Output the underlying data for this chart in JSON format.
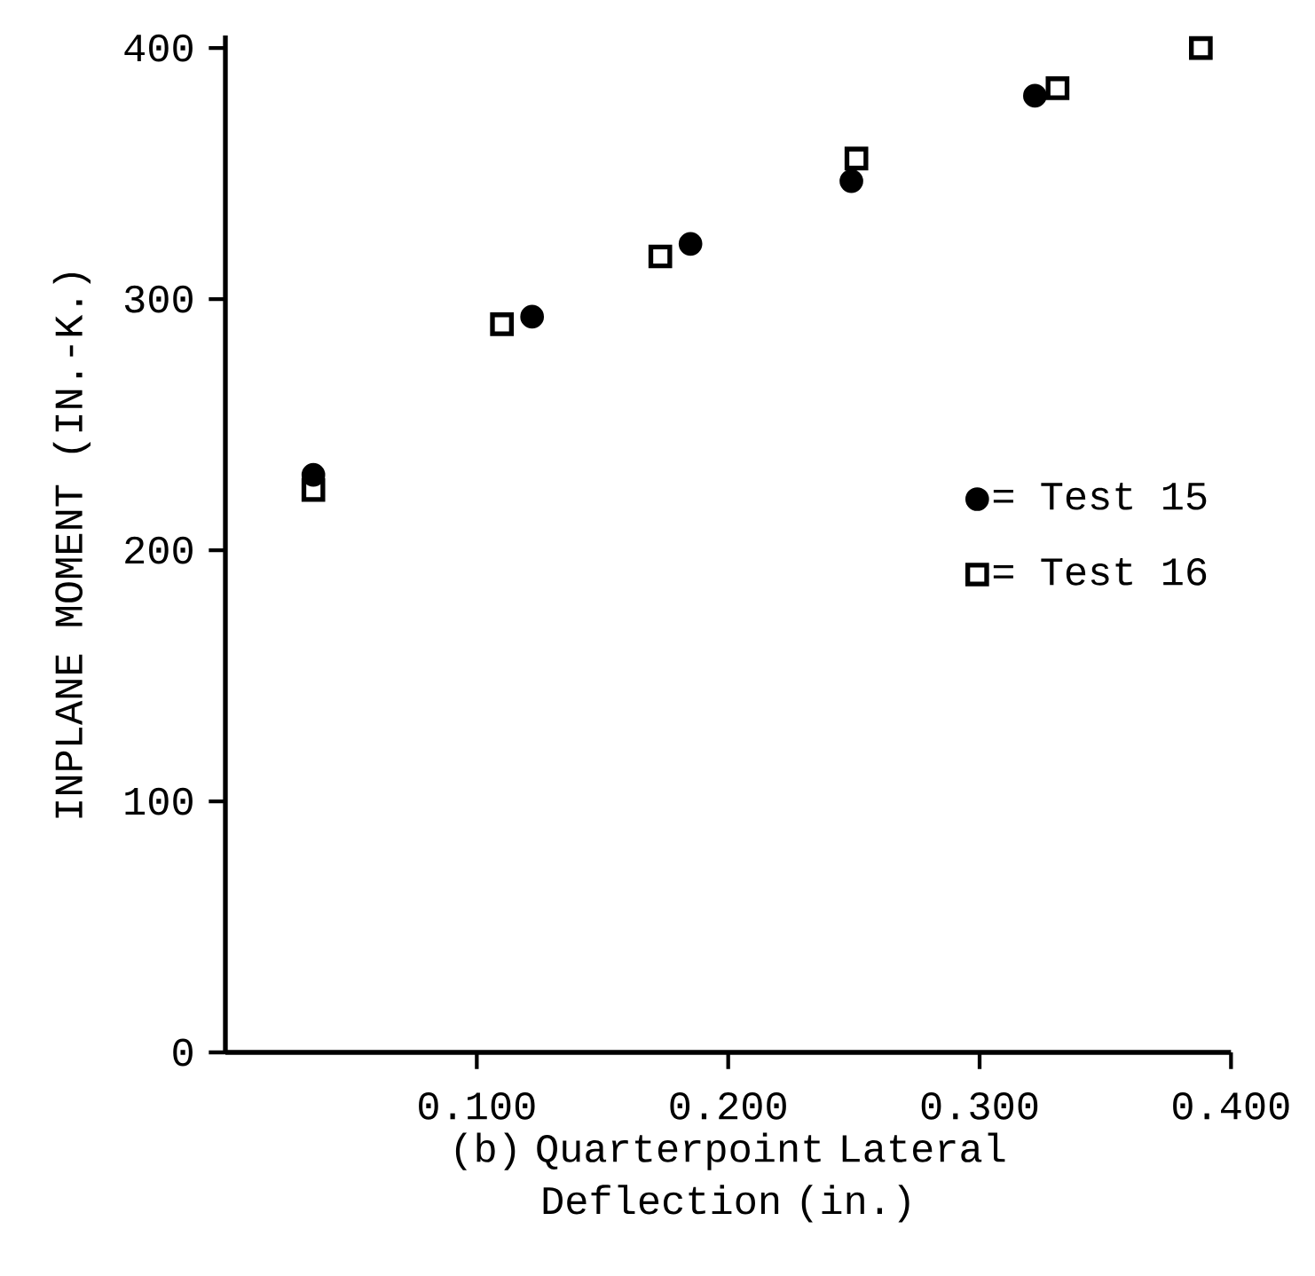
{
  "chart_data": {
    "type": "scatter",
    "xlabel": "(b)    Quarterpoint Lateral Deflection (in.)",
    "ylabel": "INPLANE MOMENT (IN.-K.)",
    "xlim": [
      0,
      0.4
    ],
    "ylim": [
      0,
      405
    ],
    "xticks": [
      {
        "value": 0.1,
        "label": "0.100"
      },
      {
        "value": 0.2,
        "label": "0.200"
      },
      {
        "value": 0.3,
        "label": "0.300"
      },
      {
        "value": 0.4,
        "label": "0.400"
      }
    ],
    "yticks": [
      0,
      100,
      200,
      300,
      400
    ],
    "grid": false,
    "legend": "right",
    "series": [
      {
        "name": "= Test 15",
        "color": "#000000",
        "marker": "circle",
        "x": [
          0.035,
          0.122,
          0.185,
          0.249,
          0.322
        ],
        "values": [
          230,
          293,
          322,
          347,
          381
        ]
      },
      {
        "name": "= Test 16",
        "color": "#000000",
        "marker": "square",
        "x": [
          0.035,
          0.11,
          0.173,
          0.251,
          0.331,
          0.388
        ],
        "values": [
          224,
          290,
          317,
          356,
          384,
          400
        ]
      }
    ]
  }
}
